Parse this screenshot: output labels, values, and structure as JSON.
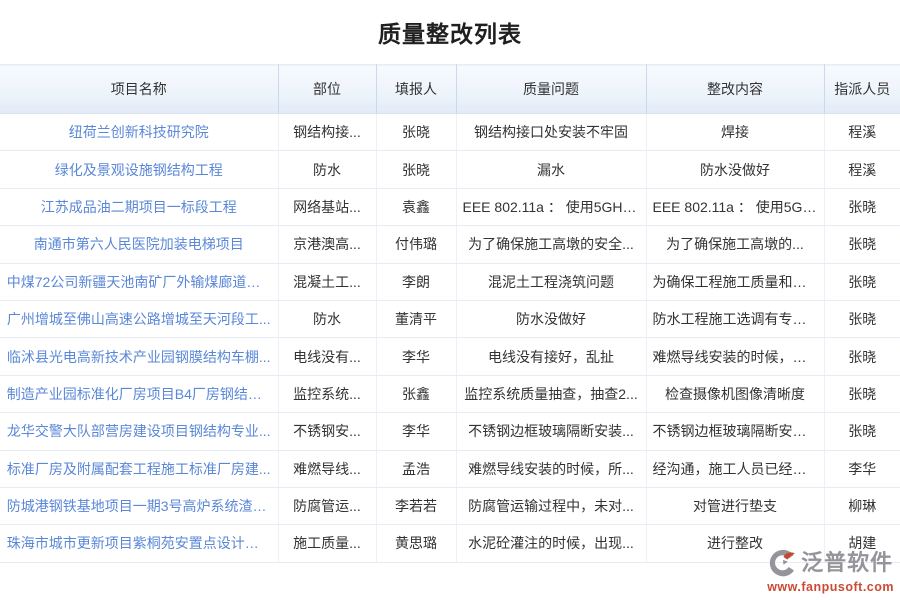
{
  "page": {
    "title": "质量整改列表"
  },
  "table": {
    "columns": [
      {
        "key": "project",
        "label": "项目名称"
      },
      {
        "key": "part",
        "label": "部位"
      },
      {
        "key": "reporter",
        "label": "填报人"
      },
      {
        "key": "issue",
        "label": "质量问题"
      },
      {
        "key": "rectification",
        "label": "整改内容"
      },
      {
        "key": "assignee",
        "label": "指派人员"
      }
    ],
    "rows": [
      {
        "project": "纽荷兰创新科技研究院",
        "part": "钢结构接...",
        "reporter": "张晓",
        "issue": "钢结构接口处安装不牢固",
        "rectification": "焊接",
        "assignee": "程溪"
      },
      {
        "project": "绿化及景观设施钢结构工程",
        "part": "防水",
        "reporter": "张晓",
        "issue": "漏水",
        "rectification": "防水没做好",
        "assignee": "程溪"
      },
      {
        "project": "江苏成品油二期项目一标段工程",
        "part": "网络基站...",
        "reporter": "袁鑫",
        "issue": "EEE 802.11a ： 使用5GHz...",
        "rectification": "EEE 802.11a ： 使用5GH...",
        "assignee": "张晓"
      },
      {
        "project": "南通市第六人民医院加装电梯项目",
        "part": "京港澳高...",
        "reporter": "付伟璐",
        "issue": "为了确保施工高墩的安全...",
        "rectification": "为了确保施工高墩的...",
        "assignee": "张晓"
      },
      {
        "project": "中煤72公司新疆天池南矿厂外输煤廊道副...",
        "part": "混凝土工...",
        "reporter": "李朗",
        "issue": "混泥土工程浇筑问题",
        "rectification": "为确保工程施工质量和进...",
        "assignee": "张晓"
      },
      {
        "project": "广州增城至佛山高速公路增城至天河段工...",
        "part": "防水",
        "reporter": "董清平",
        "issue": "防水没做好",
        "rectification": "防水工程施工选调有专业...",
        "assignee": "张晓"
      },
      {
        "project": "临沭县光电高新技术产业园钢膜结构车棚...",
        "part": "电线没有...",
        "reporter": "李华",
        "issue": "电线没有接好，乱扯",
        "rectification": "难燃导线安装的时候，所...",
        "assignee": "张晓"
      },
      {
        "project": "制造产业园标准化厂房项目B4厂房钢结构...",
        "part": "监控系统...",
        "reporter": "张鑫",
        "issue": "监控系统质量抽查，抽查2...",
        "rectification": "检查摄像机图像清晰度",
        "assignee": "张晓"
      },
      {
        "project": "龙华交警大队部营房建设项目钢结构专业...",
        "part": "不锈钢安...",
        "reporter": "李华",
        "issue": "不锈钢边框玻璃隔断安装...",
        "rectification": "不锈钢边框玻璃隔断安装...",
        "assignee": "张晓"
      },
      {
        "project": "标准厂房及附属配套工程施工标准厂房建...",
        "part": "难燃导线...",
        "reporter": "孟浩",
        "issue": "难燃导线安装的时候，所...",
        "rectification": "经沟通，施工人员已经更...",
        "assignee": "李华"
      },
      {
        "project": "防城港钢铁基地项目一期3号高炉系统渣处...",
        "part": "防腐管运...",
        "reporter": "李若若",
        "issue": "防腐管运输过程中，未对...",
        "rectification": "对管进行垫支",
        "assignee": "柳琳"
      },
      {
        "project": "珠海市城市更新项目紫桐苑安置点设计项目",
        "part": "施工质量...",
        "reporter": "黄思璐",
        "issue": "水泥砼灌注的时候，出现...",
        "rectification": "进行整改",
        "assignee": "胡建"
      }
    ]
  },
  "footer": {
    "logo_text": "泛普软件",
    "logo_url": "www.fanpusoft.com"
  },
  "colors": {
    "link_blue": "#5a87d8",
    "header_gradient_top": "#f7fafd",
    "header_gradient_bottom": "#e1ebf7",
    "row_border": "#e7ecf4",
    "header_divider": "#ccd9ec",
    "logo_gray": "#95949b",
    "logo_red": "#c5472e",
    "title_text": "#1f1f1f",
    "body_text": "#333333"
  }
}
